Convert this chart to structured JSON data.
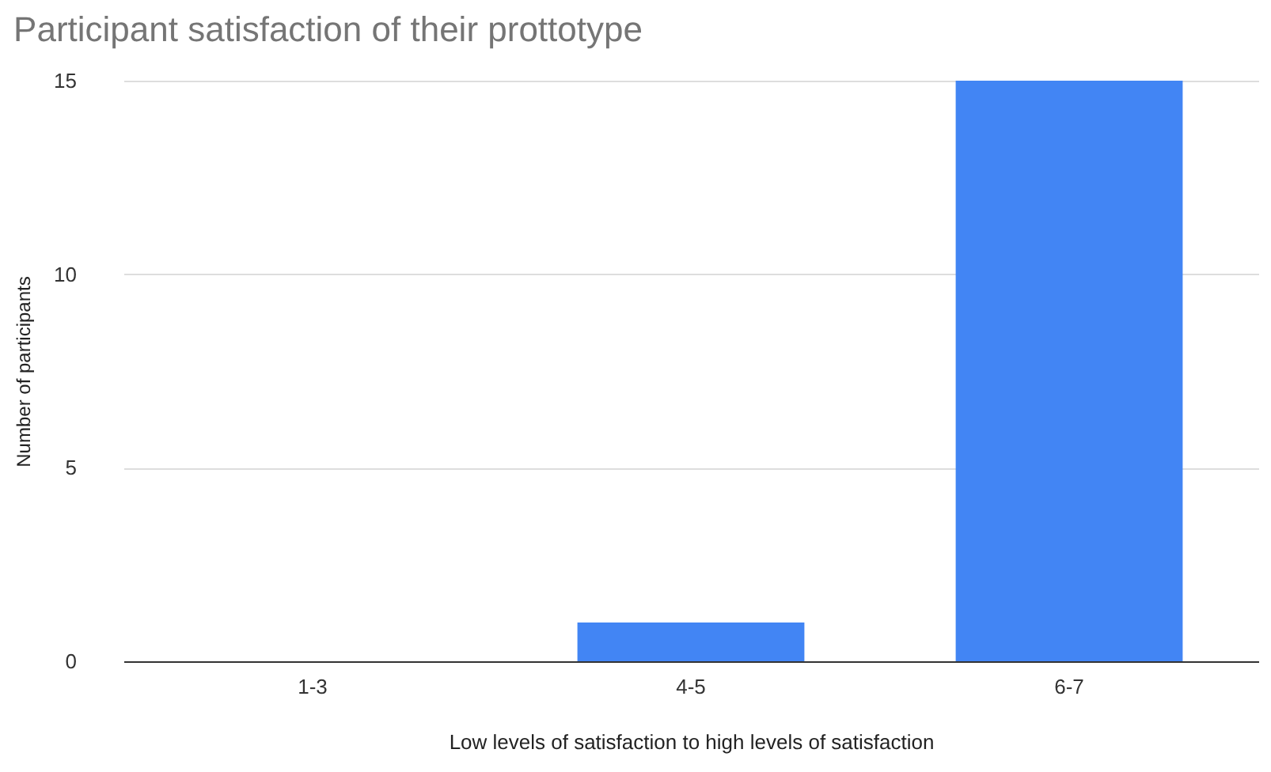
{
  "chart_data": {
    "type": "bar",
    "title": "Participant satisfaction of their prottotype",
    "xlabel": "Low levels of satisfaction to high levels of satisfaction",
    "ylabel": "Number of participants",
    "categories": [
      "1-3",
      "4-5",
      "6-7"
    ],
    "values": [
      0,
      1,
      15
    ],
    "color": "#4285f4",
    "ylim": [
      0,
      15
    ],
    "yticks": [
      0,
      5,
      10,
      15
    ],
    "grid": "y"
  }
}
